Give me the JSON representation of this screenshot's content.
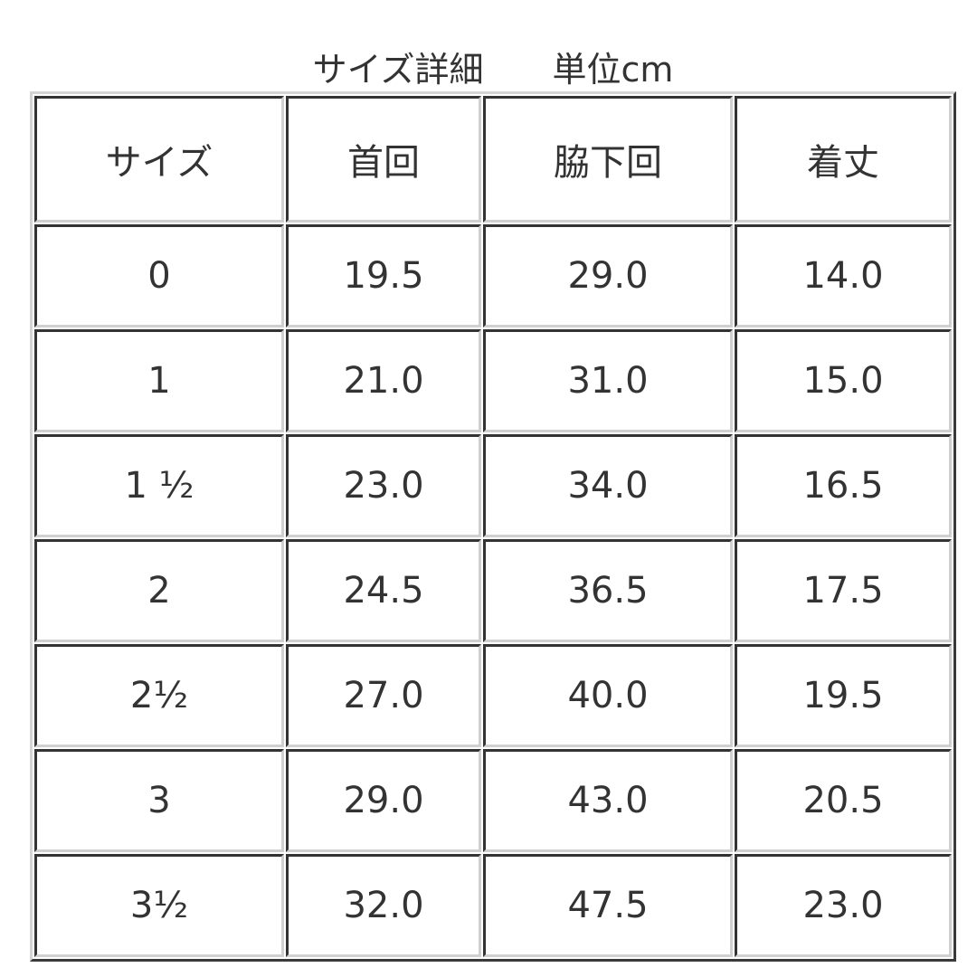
{
  "title": "サイズ詳細　　単位cm",
  "table": {
    "headers": [
      "サイズ",
      "首回",
      "脇下回",
      "着丈"
    ],
    "rows": [
      [
        "0",
        "19.5",
        "29.0",
        "14.0"
      ],
      [
        "1",
        "21.0",
        "31.0",
        "15.0"
      ],
      [
        "1 ½",
        "23.0",
        "34.0",
        "16.5"
      ],
      [
        "2",
        "24.5",
        "36.5",
        "17.5"
      ],
      [
        "2½",
        "27.0",
        "40.0",
        "19.5"
      ],
      [
        "3",
        "29.0",
        "43.0",
        "20.5"
      ],
      [
        "3½",
        "32.0",
        "47.5",
        "23.0"
      ]
    ]
  }
}
